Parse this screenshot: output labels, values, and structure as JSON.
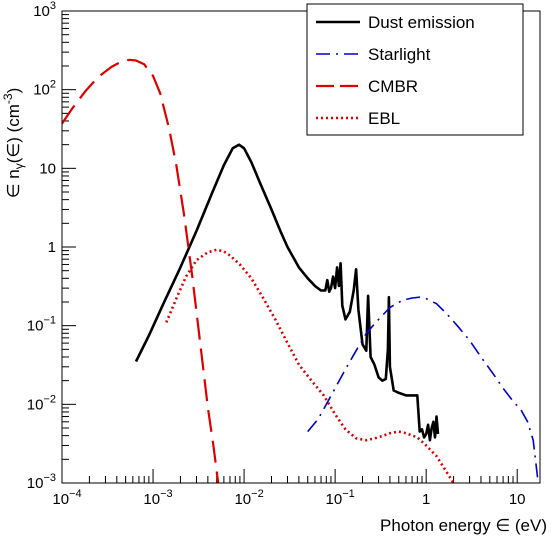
{
  "chart_data": {
    "type": "line",
    "title": "",
    "xlabel": "Photon energy ∈ (eV)",
    "ylabel": "∈ nγ(∈) (cm⁻³)",
    "ylabel_parts": {
      "pre": "∈ n",
      "sub": "γ",
      "mid": "(∈) (cm",
      "sup": "-3",
      "post": ")"
    },
    "xscale": "log",
    "yscale": "log",
    "xlim": [
      0.0001,
      17.8
    ],
    "ylim": [
      0.001,
      1000
    ],
    "grid": false,
    "legend_position": "top-right",
    "x_ticks": [
      {
        "value": 0.0001,
        "base": "10",
        "exp": "−4"
      },
      {
        "value": 0.001,
        "base": "10",
        "exp": "−3"
      },
      {
        "value": 0.01,
        "base": "10",
        "exp": "−2"
      },
      {
        "value": 0.1,
        "base": "10",
        "exp": "−1"
      },
      {
        "value": 1,
        "base": "1",
        "exp": ""
      },
      {
        "value": 10,
        "base": "10",
        "exp": ""
      }
    ],
    "y_ticks": [
      {
        "value": 0.001,
        "base": "10",
        "exp": "−3"
      },
      {
        "value": 0.01,
        "base": "10",
        "exp": "−2"
      },
      {
        "value": 0.1,
        "base": "10",
        "exp": "−1"
      },
      {
        "value": 1,
        "base": "1",
        "exp": ""
      },
      {
        "value": 10,
        "base": "10",
        "exp": ""
      },
      {
        "value": 100,
        "base": "10",
        "exp": "2"
      },
      {
        "value": 1000,
        "base": "10",
        "exp": "3"
      }
    ],
    "series": [
      {
        "name": "Dust emission",
        "color": "#000000",
        "style": "solid",
        "points": [
          [
            0.00065,
            0.035
          ],
          [
            0.0009,
            0.075
          ],
          [
            0.0013,
            0.19
          ],
          [
            0.002,
            0.55
          ],
          [
            0.003,
            1.6
          ],
          [
            0.0045,
            5.0
          ],
          [
            0.006,
            11
          ],
          [
            0.0075,
            18
          ],
          [
            0.0088,
            20
          ],
          [
            0.01,
            18
          ],
          [
            0.012,
            12
          ],
          [
            0.015,
            6.5
          ],
          [
            0.02,
            3.0
          ],
          [
            0.025,
            1.6
          ],
          [
            0.03,
            1.0
          ],
          [
            0.04,
            0.55
          ],
          [
            0.05,
            0.4
          ],
          [
            0.06,
            0.32
          ],
          [
            0.07,
            0.28
          ],
          [
            0.078,
            0.28
          ],
          [
            0.082,
            0.38
          ],
          [
            0.086,
            0.27
          ],
          [
            0.09,
            0.3
          ],
          [
            0.095,
            0.42
          ],
          [
            0.1,
            0.3
          ],
          [
            0.105,
            0.55
          ],
          [
            0.11,
            0.32
          ],
          [
            0.115,
            0.62
          ],
          [
            0.12,
            0.18
          ],
          [
            0.13,
            0.12
          ],
          [
            0.145,
            0.15
          ],
          [
            0.16,
            0.28
          ],
          [
            0.17,
            0.52
          ],
          [
            0.18,
            0.16
          ],
          [
            0.2,
            0.058
          ],
          [
            0.22,
            0.048
          ],
          [
            0.23,
            0.24
          ],
          [
            0.245,
            0.04
          ],
          [
            0.27,
            0.032
          ],
          [
            0.3,
            0.022
          ],
          [
            0.33,
            0.02
          ],
          [
            0.36,
            0.021
          ],
          [
            0.38,
            0.05
          ],
          [
            0.39,
            0.23
          ],
          [
            0.4,
            0.03
          ],
          [
            0.44,
            0.015
          ],
          [
            0.5,
            0.014
          ],
          [
            0.6,
            0.013
          ],
          [
            0.7,
            0.013
          ],
          [
            0.8,
            0.013
          ],
          [
            0.85,
            0.0045
          ],
          [
            0.9,
            0.0048
          ],
          [
            0.95,
            0.0038
          ],
          [
            1.0,
            0.0042
          ],
          [
            1.05,
            0.0055
          ],
          [
            1.1,
            0.0035
          ],
          [
            1.15,
            0.005
          ],
          [
            1.2,
            0.006
          ],
          [
            1.25,
            0.0038
          ],
          [
            1.3,
            0.007
          ],
          [
            1.35,
            0.0042
          ]
        ]
      },
      {
        "name": "Starlight",
        "color": "#0000cc",
        "style": "dashdot",
        "points": [
          [
            0.05,
            0.0045
          ],
          [
            0.065,
            0.0065
          ],
          [
            0.08,
            0.01
          ],
          [
            0.1,
            0.016
          ],
          [
            0.13,
            0.028
          ],
          [
            0.17,
            0.048
          ],
          [
            0.22,
            0.08
          ],
          [
            0.3,
            0.12
          ],
          [
            0.4,
            0.17
          ],
          [
            0.55,
            0.21
          ],
          [
            0.7,
            0.225
          ],
          [
            0.85,
            0.23
          ],
          [
            1.0,
            0.22
          ],
          [
            1.3,
            0.19
          ],
          [
            1.7,
            0.14
          ],
          [
            2.2,
            0.1
          ],
          [
            3.0,
            0.065
          ],
          [
            4.0,
            0.04
          ],
          [
            5.5,
            0.024
          ],
          [
            7.0,
            0.016
          ],
          [
            9.0,
            0.011
          ],
          [
            11,
            0.0085
          ],
          [
            13,
            0.006
          ],
          [
            15,
            0.0035
          ],
          [
            17,
            0.001
          ]
        ]
      },
      {
        "name": "CMBR",
        "color": "#dd0000",
        "style": "dashed",
        "points": [
          [
            0.0001,
            37
          ],
          [
            0.00013,
            58
          ],
          [
            0.00018,
            95
          ],
          [
            0.00025,
            145
          ],
          [
            0.00035,
            195
          ],
          [
            0.00045,
            228
          ],
          [
            0.00055,
            240
          ],
          [
            0.00065,
            235
          ],
          [
            0.0008,
            210
          ],
          [
            0.001,
            150
          ],
          [
            0.0012,
            90
          ],
          [
            0.0015,
            32
          ],
          [
            0.0018,
            11
          ],
          [
            0.0022,
            2.5
          ],
          [
            0.0027,
            0.42
          ],
          [
            0.0033,
            0.06
          ],
          [
            0.004,
            0.009
          ],
          [
            0.0046,
            0.003
          ],
          [
            0.0052,
            0.001
          ]
        ]
      },
      {
        "name": "EBL",
        "color": "#dd0000",
        "style": "dotted",
        "points": [
          [
            0.0014,
            0.11
          ],
          [
            0.0018,
            0.22
          ],
          [
            0.0023,
            0.42
          ],
          [
            0.003,
            0.68
          ],
          [
            0.004,
            0.86
          ],
          [
            0.005,
            0.92
          ],
          [
            0.006,
            0.88
          ],
          [
            0.007,
            0.78
          ],
          [
            0.009,
            0.6
          ],
          [
            0.012,
            0.4
          ],
          [
            0.016,
            0.23
          ],
          [
            0.022,
            0.12
          ],
          [
            0.03,
            0.06
          ],
          [
            0.04,
            0.032
          ],
          [
            0.055,
            0.02
          ],
          [
            0.075,
            0.013
          ],
          [
            0.1,
            0.0075
          ],
          [
            0.13,
            0.0048
          ],
          [
            0.17,
            0.0037
          ],
          [
            0.22,
            0.0035
          ],
          [
            0.3,
            0.0038
          ],
          [
            0.4,
            0.0043
          ],
          [
            0.5,
            0.0045
          ],
          [
            0.6,
            0.0043
          ],
          [
            0.8,
            0.0038
          ],
          [
            1.0,
            0.003
          ],
          [
            1.3,
            0.0022
          ],
          [
            1.6,
            0.0015
          ],
          [
            2.0,
            0.001
          ]
        ]
      }
    ]
  }
}
